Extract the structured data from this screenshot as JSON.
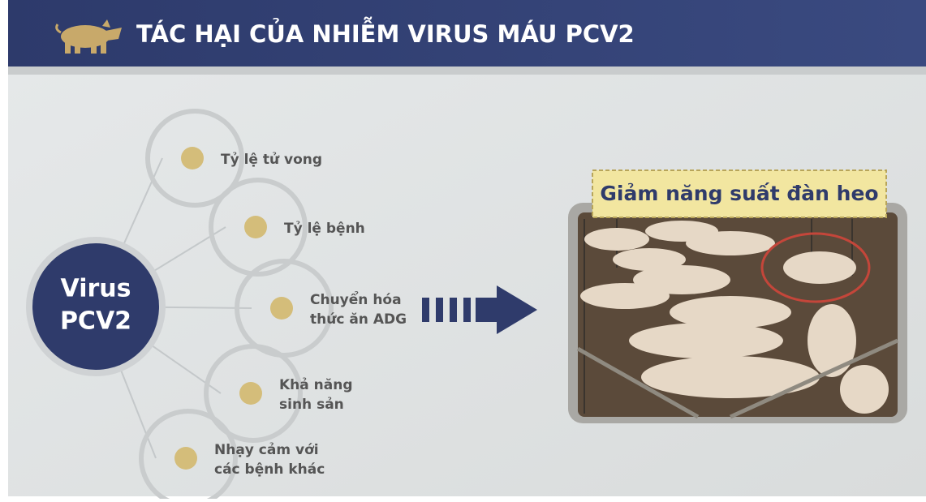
{
  "header": {
    "title": "TÁC HẠI CỦA NHIỄM VIRUS MÁU PCV2"
  },
  "center": {
    "lines": [
      "Virus",
      "PCV2"
    ]
  },
  "nodes": [
    {
      "lines": [
        "Tỷ lệ tử vong"
      ]
    },
    {
      "lines": [
        "Tỷ lệ bệnh"
      ]
    },
    {
      "lines": [
        "Chuyển hóa",
        "thức ăn ADG"
      ]
    },
    {
      "lines": [
        "Khả năng",
        "sinh sản"
      ]
    },
    {
      "lines": [
        "Nhạy cảm với",
        "các bệnh khác"
      ]
    }
  ],
  "result": {
    "label": "Giảm năng suất đàn heo"
  }
}
